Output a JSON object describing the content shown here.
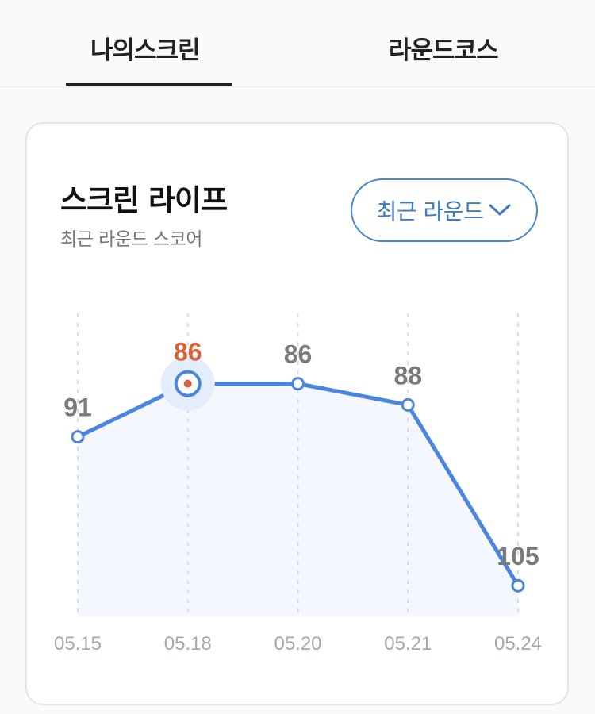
{
  "tabs": [
    {
      "label": "나의스크린",
      "active": true
    },
    {
      "label": "라운드코스",
      "active": false
    }
  ],
  "card": {
    "title": "스크린 라이프",
    "subtitle": "최근 라운드 스코어",
    "filter_label": "최근 라운드"
  },
  "chart_data": {
    "type": "line",
    "categories": [
      "05.15",
      "05.18",
      "05.20",
      "05.21",
      "05.24"
    ],
    "series": [
      {
        "values": [
          91,
          86,
          86,
          88,
          105
        ]
      }
    ],
    "selected_index": 1,
    "y_axis_inverted": true,
    "ylim": [
      82,
      107
    ],
    "grid": "vertical-dashed",
    "colors": {
      "line": "#4a86e0",
      "area": "#f4f7fd",
      "selected_label": "#d9623a",
      "label": "#7a7a7a",
      "point_fill": "#ffffff",
      "halo": "#e3edfb"
    }
  }
}
